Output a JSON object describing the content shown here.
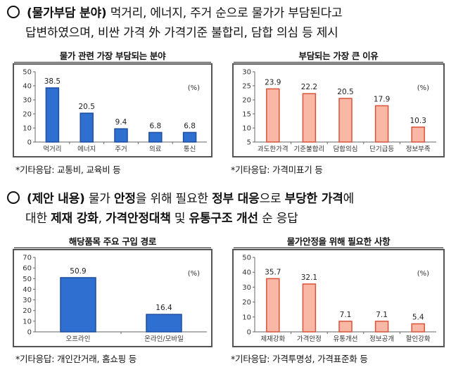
{
  "section1": {
    "line1": {
      "prefix": "(물가부담 분야)",
      "rest": " 먹거리, 에너지, 주거 순으로 물가가 부담된다고"
    },
    "line2": "답변하였으며, 비싼 가격 外 가격기준 불합리, 담합 의심 등 제시"
  },
  "section2": {
    "line1": {
      "p1": "(제안 내용)",
      "p2": " 물가 ",
      "p3": "안정",
      "p4": "을 위해 필요한 ",
      "p5": "정부 대응",
      "p6": "으로 ",
      "p7": "부당한 가격",
      "p8": "에"
    },
    "line2": {
      "p1": "대한 ",
      "p2": "제재 강화",
      "p3": ", ",
      "p4": "가격안정대책",
      "p5": " 및 ",
      "p6": "유통구조 개선",
      "p7": " 순 응답"
    }
  },
  "notes": {
    "c1": "*기타응답: 교통비, 교육비 등",
    "c2": "*기타응답: 가격미표기 등",
    "c3": "*기타응답: 개인간거래, 홈쇼핑 등",
    "c4": "*기타응답: 가격투명성, 가격표준화 등"
  },
  "colors": {
    "blue_fill": "#2f6fd0",
    "blue_edge": "#1f4fa0",
    "salmon_fill": "#f9b8a5",
    "salmon_edge": "#d9533a"
  },
  "chart_data": [
    {
      "type": "bar",
      "title": "물가 관련 가장 부담되는 분야",
      "unit": "(%)",
      "categories": [
        "먹거리",
        "에너지",
        "주거",
        "의료",
        "통신"
      ],
      "values": [
        38.5,
        20.5,
        9.4,
        6.8,
        6.8
      ],
      "labels": [
        "38.5",
        "20.5",
        "9.4",
        "6.8",
        "6.8"
      ],
      "ylim": [
        0,
        50
      ],
      "yticks": [
        0,
        10,
        20,
        30,
        40,
        50
      ],
      "color": "blue"
    },
    {
      "type": "bar",
      "title": "부담되는 가장 큰 이유",
      "unit": "(%)",
      "categories": [
        "과도한가격",
        "기준불합리",
        "담합의심",
        "단기급등",
        "정보부족"
      ],
      "values": [
        23.9,
        22.2,
        20.5,
        17.9,
        10.3
      ],
      "labels": [
        "23.9",
        "22.2",
        "20.5",
        "17.9",
        "10.3"
      ],
      "ylim": [
        5,
        30
      ],
      "yticks": [
        5,
        10,
        15,
        20,
        25,
        30
      ],
      "color": "salmon"
    },
    {
      "type": "bar",
      "title": "해당품목 주요 구입 경로",
      "unit": "(%)",
      "categories": [
        "오프라인",
        "온라인/모바일"
      ],
      "values": [
        50.9,
        16.4
      ],
      "labels": [
        "50.9",
        "16.4"
      ],
      "ylim": [
        0,
        70
      ],
      "yticks": [
        0,
        10,
        20,
        30,
        40,
        50,
        60,
        70
      ],
      "color": "blue"
    },
    {
      "type": "bar",
      "title": "물가안정을 위해 필요한 사항",
      "unit": "(%)",
      "categories": [
        "제재강화",
        "가격안정",
        "유통개선",
        "정보공개",
        "할인강화"
      ],
      "values": [
        35.7,
        32.1,
        7.1,
        7.1,
        5.4
      ],
      "labels": [
        "35.7",
        "32.1",
        "7.1",
        "7.1",
        "5.4"
      ],
      "ylim": [
        0,
        50
      ],
      "yticks": [
        0,
        10,
        20,
        30,
        40,
        50
      ],
      "color": "salmon"
    }
  ]
}
